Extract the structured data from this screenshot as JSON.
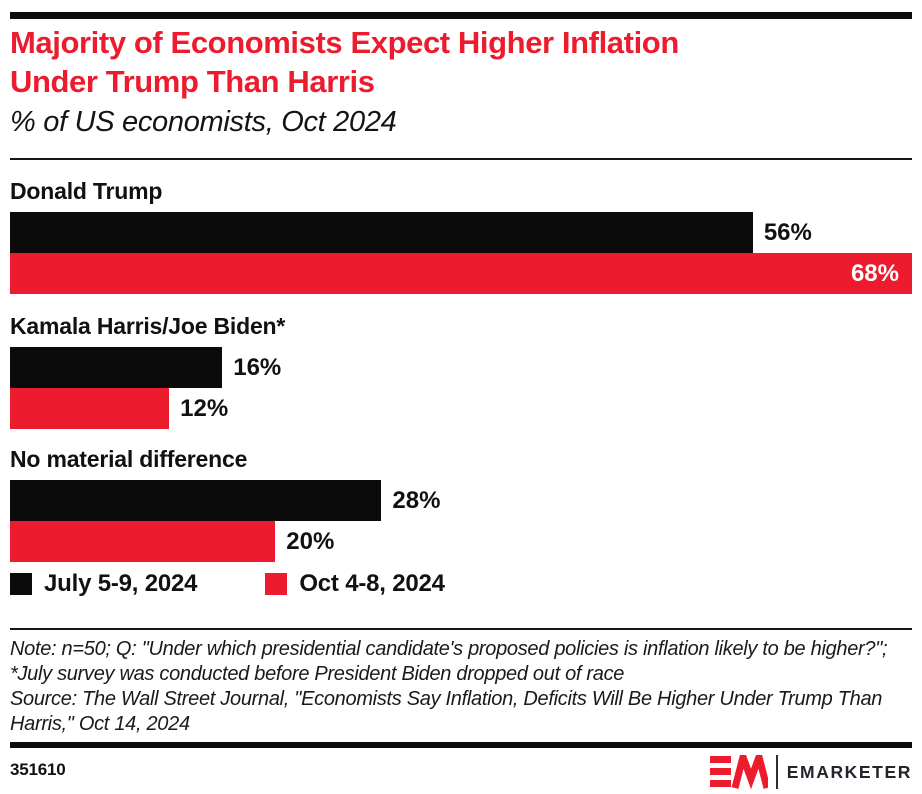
{
  "header": {
    "title_lines": [
      "Majority of Economists Expect Higher Inflation",
      "Under Trump Than Harris"
    ],
    "subtitle": "% of US economists, Oct 2024"
  },
  "chart_data": {
    "type": "bar",
    "orientation": "horizontal",
    "title": "Majority of Economists Expect Higher Inflation Under Trump Than Harris",
    "subtitle": "% of US economists, Oct 2024",
    "categories": [
      "Donald Trump",
      "Kamala Harris/Joe Biden*",
      "No material difference"
    ],
    "series": [
      {
        "name": "July 5-9, 2024",
        "color": "#0b0b0b",
        "values": [
          56,
          16,
          28
        ]
      },
      {
        "name": "Oct 4-8, 2024",
        "color": "#ec1b2d",
        "values": [
          68,
          12,
          20
        ]
      }
    ],
    "value_suffix": "%",
    "xlim": [
      0,
      68
    ],
    "grid": false,
    "legend_position": "bottom",
    "value_labels": "outside bars in black; max bar label inside in white"
  },
  "footnote": {
    "note": "Note: n=50; Q: \"Under which presidential candidate's proposed policies is inflation likely to be higher?\"; *July survey was conducted before President Biden dropped out of race",
    "source": "Source: The Wall Street Journal, \"Economists Say Inflation, Deficits Will Be Higher Under Trump Than Harris,\" Oct 14, 2024"
  },
  "footer": {
    "chart_id": "351610",
    "brand": "EMARKETER"
  },
  "colors": {
    "accent_red": "#ec1b2d",
    "bar_black": "#0b0b0b",
    "text": "#111111",
    "rule": "#161616"
  }
}
